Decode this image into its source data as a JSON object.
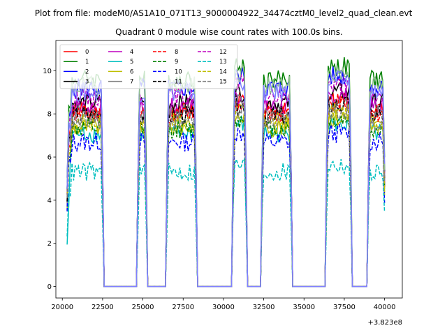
{
  "suptitle": "Plot from file: modeM0/AS1A10_071T13_9000004922_34474cztM0_level2_quad_clean.evt",
  "chart_data": {
    "type": "line",
    "title": "Quadrant 0 module wise count rates with 100.0s bins.",
    "xlabel": "",
    "ylabel": "",
    "x_offset_label": "+3.823e8",
    "xlim": [
      19600,
      41100
    ],
    "ylim": [
      -0.53,
      11.4
    ],
    "xticks": [
      20000,
      22500,
      25000,
      27500,
      30000,
      32500,
      35000,
      37500,
      40000
    ],
    "xtick_labels": [
      "20000",
      "22500",
      "25000",
      "27500",
      "30000",
      "32500",
      "35000",
      "37500",
      "40000"
    ],
    "yticks": [
      0,
      2,
      4,
      6,
      8,
      10
    ],
    "ytick_labels": [
      "0",
      "2",
      "4",
      "6",
      "8",
      "10"
    ],
    "grid": false,
    "legend_position": "upper-left",
    "legend_columns": 4,
    "segments": [
      {
        "start": 20300,
        "end": 22500
      },
      {
        "start": 24700,
        "end": 25200
      },
      {
        "start": 26500,
        "end": 28300
      },
      {
        "start": 30600,
        "end": 31400
      },
      {
        "start": 32400,
        "end": 34200
      },
      {
        "start": 36400,
        "end": 37900
      },
      {
        "start": 39000,
        "end": 40000
      }
    ],
    "series": [
      {
        "name": "0",
        "color": "#ff0000",
        "dash": "solid",
        "level": 8.1
      },
      {
        "name": "1",
        "color": "#008000",
        "dash": "solid",
        "level": 9.6
      },
      {
        "name": "2",
        "color": "#0000ff",
        "dash": "solid",
        "level": 9.2
      },
      {
        "name": "3",
        "color": "#000000",
        "dash": "solid",
        "level": 8.5
      },
      {
        "name": "4",
        "color": "#bf00bf",
        "dash": "solid",
        "level": 8.3
      },
      {
        "name": "5",
        "color": "#00bfbf",
        "dash": "solid",
        "level": 7.1
      },
      {
        "name": "6",
        "color": "#bfbf00",
        "dash": "solid",
        "level": 7.4
      },
      {
        "name": "7",
        "color": "#808080",
        "dash": "solid",
        "level": 8.0
      },
      {
        "name": "8",
        "color": "#ff0000",
        "dash": "dashed",
        "level": 8.0
      },
      {
        "name": "9",
        "color": "#008000",
        "dash": "dashed",
        "level": 7.3
      },
      {
        "name": "10",
        "color": "#0000ff",
        "dash": "dashed",
        "level": 6.7
      },
      {
        "name": "11",
        "color": "#000000",
        "dash": "dashed",
        "level": 7.9
      },
      {
        "name": "12",
        "color": "#bf00bf",
        "dash": "dashed",
        "level": 8.8
      },
      {
        "name": "13",
        "color": "#00bfbf",
        "dash": "dashed",
        "level": 5.3
      },
      {
        "name": "14",
        "color": "#bfbf00",
        "dash": "dashed",
        "level": 7.6
      },
      {
        "name": "15",
        "color": "#808080",
        "dash": "dashed",
        "level": 7.7
      },
      {
        "name": "",
        "color": "#8fc08f",
        "dash": "solid",
        "level": 9.3
      },
      {
        "name": "",
        "color": "#8080ff",
        "dash": "solid",
        "level": 9.0
      }
    ]
  }
}
